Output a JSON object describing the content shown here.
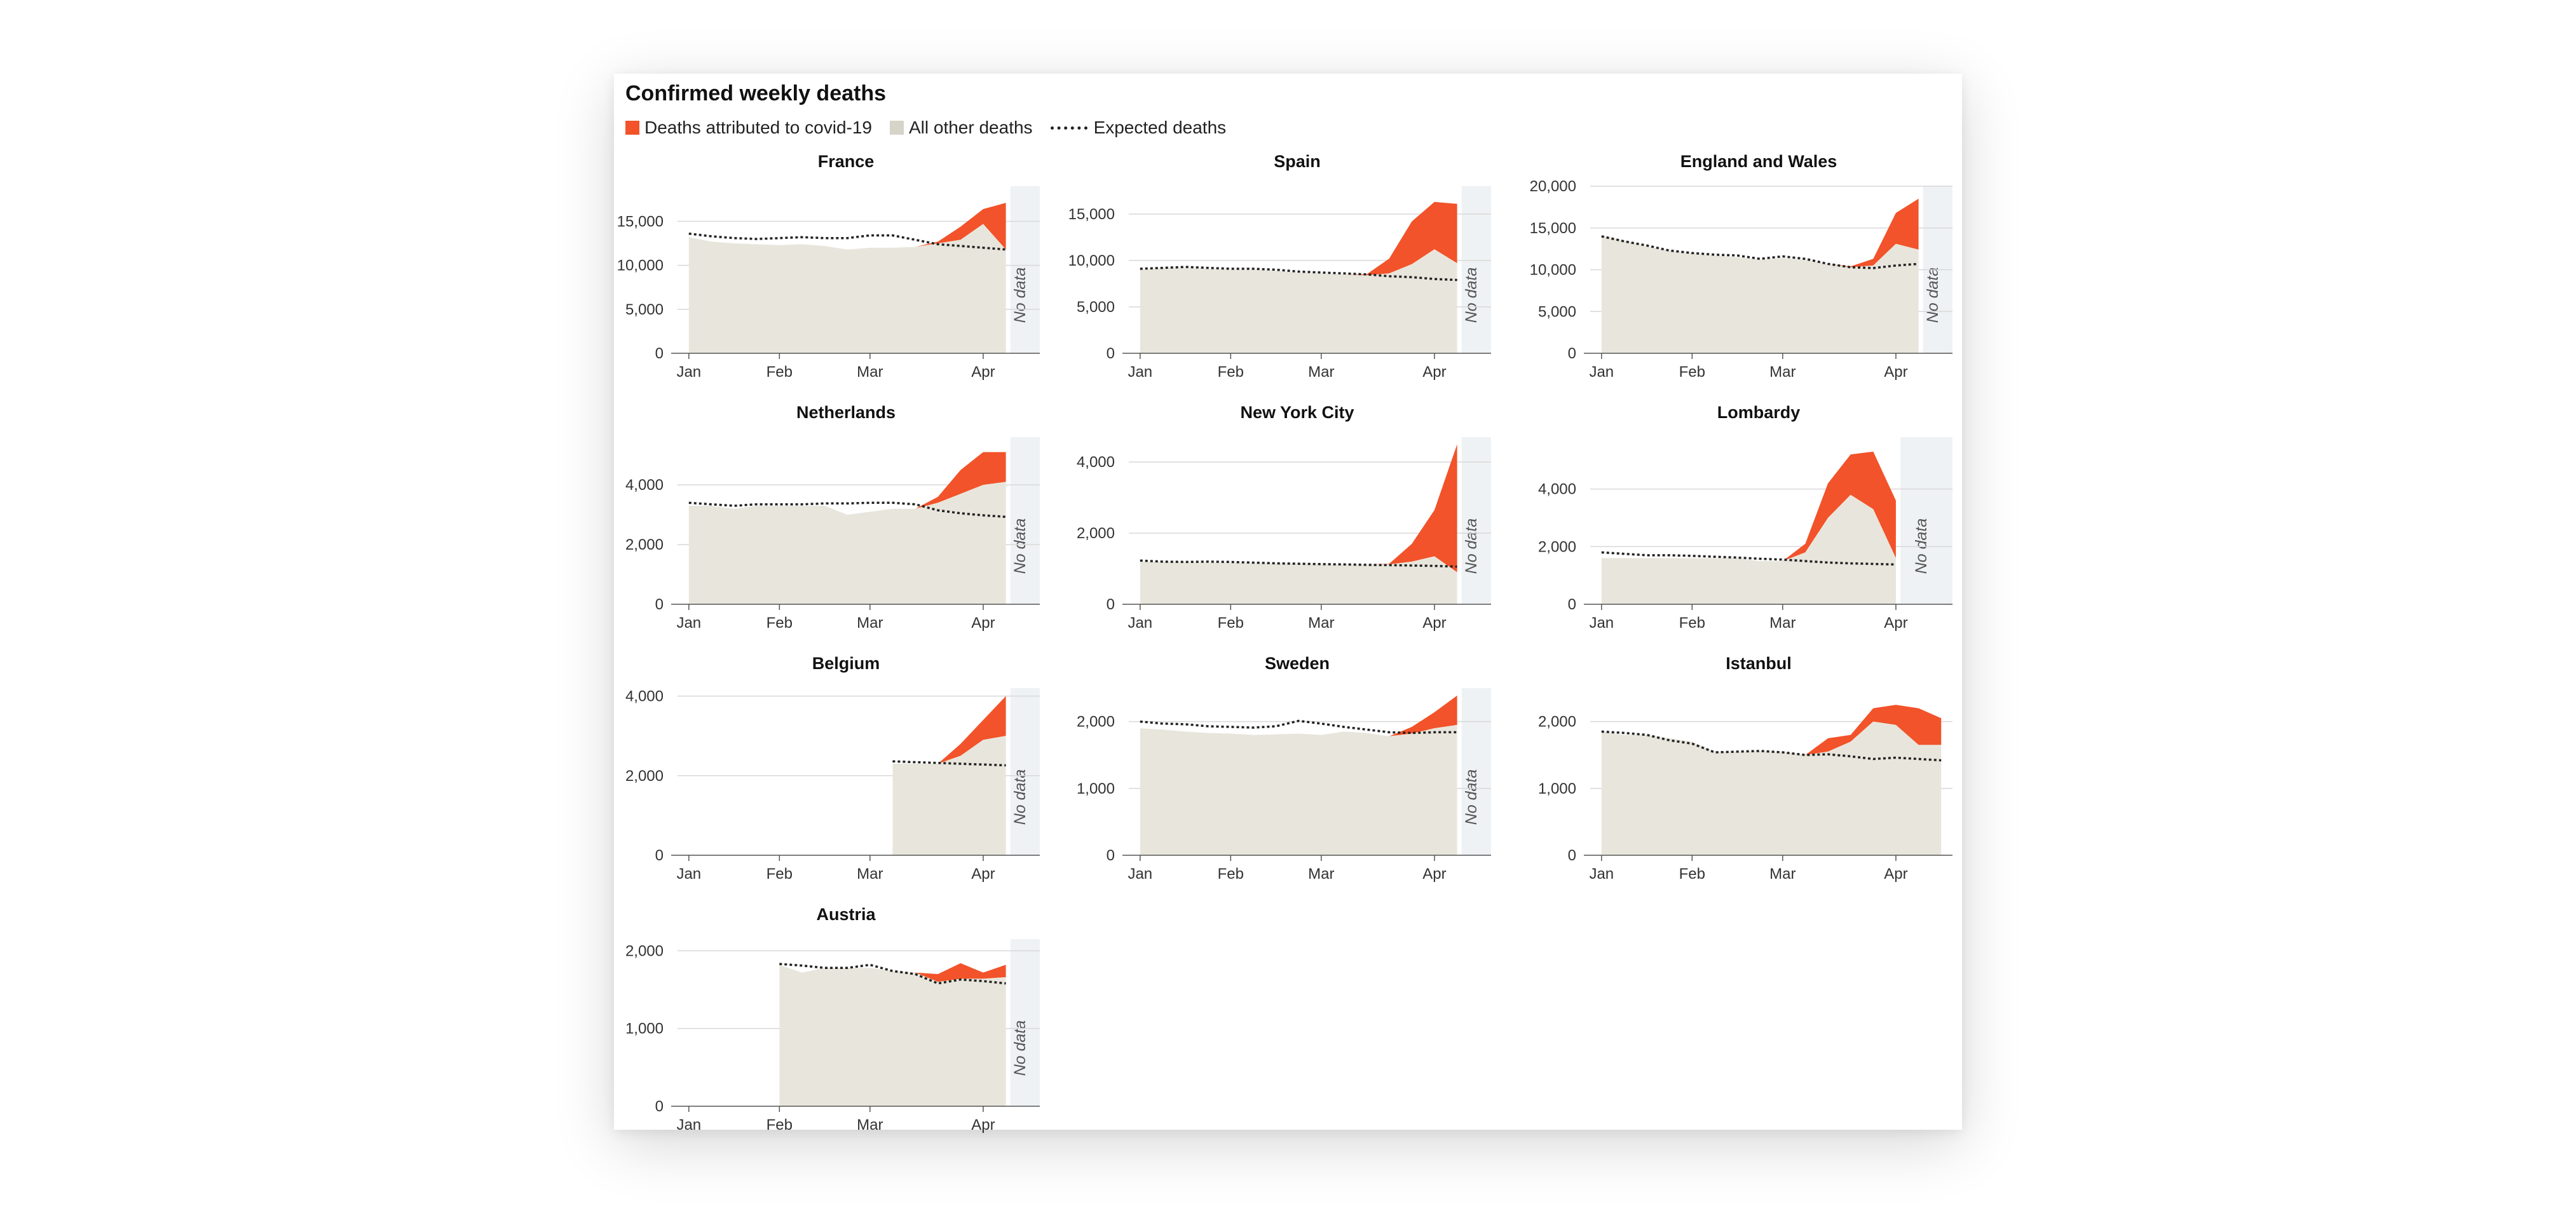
{
  "title": "Confirmed weekly deaths",
  "legend": {
    "covid": "Deaths attributed to covid-19",
    "other": "All other deaths",
    "expected": "Expected deaths"
  },
  "no_data_label": "No data",
  "colors": {
    "covid": "#f2532a",
    "other": "#e8e6dc",
    "expected": "#222222",
    "nodata": "#eef2f4",
    "grid": "#d8d8d8",
    "axis": "#555555"
  },
  "chart_data": [
    {
      "type": "area",
      "title": "France",
      "xticks": [
        "Jan",
        "Feb",
        "Mar",
        "Apr"
      ],
      "ylim": [
        0,
        19000
      ],
      "yticks": [
        0,
        5000,
        10000,
        15000
      ],
      "ytick_labels": [
        "0",
        "5,000",
        "10,000",
        "15,000"
      ],
      "weeks": [
        1,
        2,
        3,
        4,
        5,
        6,
        7,
        8,
        9,
        10,
        11,
        12,
        13,
        14,
        15
      ],
      "other": [
        13200,
        12700,
        12500,
        12400,
        12300,
        12400,
        12200,
        11800,
        12000,
        12000,
        12100,
        12500,
        12900,
        14700,
        11800
      ],
      "covid": [
        0,
        0,
        0,
        0,
        0,
        0,
        0,
        0,
        0,
        0,
        0,
        200,
        1500,
        1700,
        5300
      ],
      "expected": [
        13600,
        13300,
        13100,
        13000,
        13100,
        13200,
        13100,
        13100,
        13400,
        13400,
        12900,
        12400,
        12200,
        12000,
        11800
      ],
      "no_data_from": 15.2
    },
    {
      "type": "area",
      "title": "Spain",
      "xticks": [
        "Jan",
        "Feb",
        "Mar",
        "Apr"
      ],
      "ylim": [
        0,
        18000
      ],
      "yticks": [
        0,
        5000,
        10000,
        15000
      ],
      "ytick_labels": [
        "0",
        "5,000",
        "10,000",
        "15,000"
      ],
      "weeks": [
        1,
        2,
        3,
        4,
        5,
        6,
        7,
        8,
        9,
        10,
        11,
        12,
        13,
        14,
        15
      ],
      "other": [
        9000,
        9200,
        9200,
        9100,
        9000,
        9000,
        8900,
        8700,
        8600,
        8500,
        8400,
        8600,
        9600,
        11200,
        9700
      ],
      "covid": [
        0,
        0,
        0,
        0,
        0,
        0,
        0,
        0,
        0,
        0,
        100,
        1600,
        4600,
        5100,
        6400
      ],
      "expected": [
        9100,
        9200,
        9300,
        9200,
        9100,
        9100,
        9000,
        8800,
        8700,
        8600,
        8500,
        8300,
        8200,
        8000,
        7900
      ],
      "no_data_from": 15.2
    },
    {
      "type": "area",
      "title": "England and Wales",
      "xticks": [
        "Jan",
        "Feb",
        "Mar",
        "Apr"
      ],
      "ylim": [
        0,
        20000
      ],
      "yticks": [
        0,
        5000,
        10000,
        15000,
        20000
      ],
      "ytick_labels": [
        "0",
        "5,000",
        "10,000",
        "15,000",
        "20,000"
      ],
      "weeks": [
        1,
        2,
        3,
        4,
        5,
        6,
        7,
        8,
        9,
        10,
        11,
        12,
        13,
        14,
        15
      ],
      "other": [
        14100,
        13500,
        12800,
        12300,
        12000,
        11700,
        11500,
        11200,
        11400,
        11200,
        10700,
        10300,
        10500,
        13100,
        12400
      ],
      "covid": [
        0,
        0,
        0,
        0,
        0,
        0,
        0,
        0,
        0,
        0,
        0,
        100,
        800,
        3700,
        6100
      ],
      "expected": [
        14000,
        13400,
        12900,
        12300,
        12000,
        11800,
        11700,
        11300,
        11600,
        11300,
        10700,
        10300,
        10200,
        10500,
        10700
      ],
      "no_data_from": 15.2
    },
    {
      "type": "area",
      "title": "Netherlands",
      "xticks": [
        "Jan",
        "Feb",
        "Mar",
        "Apr"
      ],
      "ylim": [
        0,
        5600
      ],
      "yticks": [
        0,
        2000,
        4000
      ],
      "ytick_labels": [
        "0",
        "2,000",
        "4,000"
      ],
      "weeks": [
        1,
        2,
        3,
        4,
        5,
        6,
        7,
        8,
        9,
        10,
        11,
        12,
        13,
        14,
        15
      ],
      "other": [
        3300,
        3300,
        3200,
        3300,
        3300,
        3300,
        3300,
        3000,
        3100,
        3200,
        3200,
        3400,
        3700,
        4000,
        4100
      ],
      "covid": [
        0,
        0,
        0,
        0,
        0,
        0,
        0,
        0,
        0,
        0,
        0,
        200,
        800,
        1100,
        1000
      ],
      "expected": [
        3400,
        3350,
        3300,
        3350,
        3350,
        3350,
        3380,
        3380,
        3400,
        3400,
        3350,
        3150,
        3050,
        2980,
        2930
      ],
      "no_data_from": 15.2
    },
    {
      "type": "area",
      "title": "New York City",
      "xticks": [
        "Jan",
        "Feb",
        "Mar",
        "Apr"
      ],
      "ylim": [
        0,
        4700
      ],
      "yticks": [
        0,
        2000,
        4000
      ],
      "ytick_labels": [
        "0",
        "2,000",
        "4,000"
      ],
      "weeks": [
        1,
        2,
        3,
        4,
        5,
        6,
        7,
        8,
        9,
        10,
        11,
        12,
        13,
        14,
        15
      ],
      "other": [
        1200,
        1200,
        1180,
        1180,
        1170,
        1160,
        1150,
        1140,
        1130,
        1120,
        1120,
        1120,
        1200,
        1350,
        900
      ],
      "covid": [
        0,
        0,
        0,
        0,
        0,
        0,
        0,
        0,
        0,
        0,
        0,
        20,
        500,
        1300,
        3600
      ],
      "expected": [
        1230,
        1200,
        1190,
        1200,
        1190,
        1170,
        1150,
        1140,
        1130,
        1120,
        1110,
        1100,
        1090,
        1080,
        1060
      ],
      "no_data_from": 15.2
    },
    {
      "type": "area",
      "title": "Lombardy",
      "xticks": [
        "Jan",
        "Feb",
        "Mar",
        "Apr"
      ],
      "ylim": [
        0,
        5800
      ],
      "yticks": [
        0,
        2000,
        4000
      ],
      "ytick_labels": [
        "0",
        "2,000",
        "4,000"
      ],
      "weeks": [
        1,
        2,
        3,
        4,
        5,
        6,
        7,
        8,
        9,
        10,
        11,
        12,
        13,
        14
      ],
      "other": [
        1600,
        1600,
        1600,
        1600,
        1600,
        1600,
        1600,
        1500,
        1500,
        1800,
        3000,
        3800,
        3300,
        1600
      ],
      "covid": [
        0,
        0,
        0,
        0,
        0,
        0,
        0,
        0,
        0,
        300,
        1200,
        1400,
        2000,
        2000
      ],
      "expected": [
        1800,
        1750,
        1700,
        1700,
        1680,
        1650,
        1620,
        1580,
        1550,
        1500,
        1450,
        1420,
        1400,
        1380
      ],
      "no_data_from": 14.2
    },
    {
      "type": "area",
      "title": "Belgium",
      "xticks": [
        "Jan",
        "Feb",
        "Mar",
        "Apr"
      ],
      "ylim": [
        0,
        4200
      ],
      "yticks": [
        0,
        2000,
        4000
      ],
      "ytick_labels": [
        "0",
        "2,000",
        "4,000"
      ],
      "weeks": [
        10,
        11,
        12,
        13,
        14,
        15
      ],
      "other": [
        2300,
        2300,
        2300,
        2500,
        2900,
        3000
      ],
      "covid": [
        0,
        0,
        0,
        300,
        500,
        1000
      ],
      "expected": [
        2360,
        2340,
        2320,
        2300,
        2280,
        2260
      ],
      "no_data_from": 15.2
    },
    {
      "type": "area",
      "title": "Sweden",
      "xticks": [
        "Jan",
        "Feb",
        "Mar",
        "Apr"
      ],
      "ylim": [
        0,
        2500
      ],
      "yticks": [
        0,
        1000,
        2000
      ],
      "ytick_labels": [
        "0",
        "1,000",
        "2,000"
      ],
      "weeks": [
        1,
        2,
        3,
        4,
        5,
        6,
        7,
        8,
        9,
        10,
        11,
        12,
        13,
        14,
        15
      ],
      "other": [
        1900,
        1880,
        1850,
        1830,
        1820,
        1800,
        1810,
        1820,
        1800,
        1850,
        1830,
        1780,
        1820,
        1900,
        1950
      ],
      "covid": [
        0,
        0,
        0,
        0,
        0,
        0,
        0,
        0,
        0,
        0,
        0,
        0,
        100,
        240,
        440
      ],
      "expected": [
        2000,
        1970,
        1960,
        1930,
        1920,
        1910,
        1930,
        2010,
        1970,
        1920,
        1880,
        1840,
        1830,
        1840,
        1840
      ],
      "no_data_from": 15.2
    },
    {
      "type": "area",
      "title": "Istanbul",
      "xticks": [
        "Jan",
        "Feb",
        "Mar",
        "Apr"
      ],
      "ylim": [
        0,
        2500
      ],
      "yticks": [
        0,
        1000,
        2000
      ],
      "ytick_labels": [
        "0",
        "1,000",
        "2,000"
      ],
      "weeks": [
        1,
        2,
        3,
        4,
        5,
        6,
        7,
        8,
        9,
        10,
        11,
        12,
        13,
        14,
        15,
        16
      ],
      "other": [
        1850,
        1800,
        1800,
        1750,
        1700,
        1550,
        1550,
        1560,
        1550,
        1500,
        1550,
        1700,
        2000,
        1950,
        1650,
        1650
      ],
      "covid": [
        0,
        0,
        0,
        0,
        0,
        0,
        0,
        0,
        0,
        0,
        200,
        100,
        200,
        300,
        550,
        400
      ],
      "expected": [
        1850,
        1830,
        1800,
        1720,
        1670,
        1540,
        1550,
        1560,
        1540,
        1500,
        1510,
        1480,
        1440,
        1460,
        1440,
        1420
      ],
      "no_data_from": null
    },
    {
      "type": "area",
      "title": "Austria",
      "xticks": [
        "Jan",
        "Feb",
        "Mar",
        "Apr"
      ],
      "ylim": [
        0,
        2150
      ],
      "yticks": [
        0,
        1000,
        2000
      ],
      "ytick_labels": [
        "0",
        "1,000",
        "2,000"
      ],
      "weeks": [
        5,
        6,
        7,
        8,
        9,
        10,
        11,
        12,
        13,
        14,
        15
      ],
      "other": [
        1820,
        1720,
        1780,
        1780,
        1780,
        1740,
        1720,
        1600,
        1640,
        1640,
        1660
      ],
      "covid": [
        0,
        0,
        0,
        0,
        0,
        0,
        0,
        100,
        200,
        80,
        160
      ],
      "expected": [
        1830,
        1810,
        1780,
        1780,
        1820,
        1740,
        1700,
        1580,
        1630,
        1610,
        1580
      ],
      "no_data_from": 15.2
    }
  ]
}
